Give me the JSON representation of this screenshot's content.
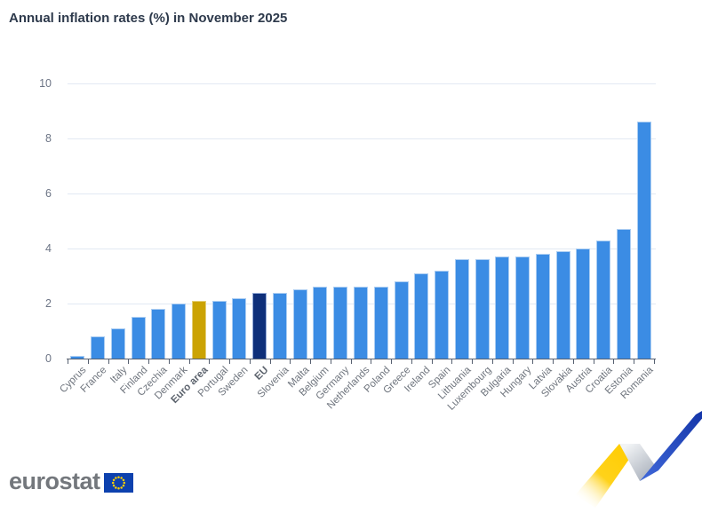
{
  "title": "Annual inflation rates (%) in November 2025",
  "chart_data": {
    "type": "bar",
    "title": "Annual inflation rates (%) in November 2025",
    "categories": [
      "Cyprus",
      "France",
      "Italy",
      "Finland",
      "Czechia",
      "Denmark",
      "Euro area",
      "Portugal",
      "Sweden",
      "EU",
      "Slovenia",
      "Malta",
      "Belgium",
      "Germany",
      "Netherlands",
      "Poland",
      "Greece",
      "Ireland",
      "Spain",
      "Lithuania",
      "Luxembourg",
      "Bulgaria",
      "Hungary",
      "Latvia",
      "Slovakia",
      "Austria",
      "Croatia",
      "Estonia",
      "Romania"
    ],
    "values": [
      0.1,
      0.8,
      1.1,
      1.5,
      1.8,
      2.0,
      2.1,
      2.1,
      2.2,
      2.4,
      2.4,
      2.5,
      2.6,
      2.6,
      2.6,
      2.6,
      2.8,
      3.1,
      3.2,
      3.6,
      3.6,
      3.7,
      3.7,
      3.8,
      3.9,
      4.0,
      4.3,
      4.7,
      8.6
    ],
    "emphasized_categories": [
      "Euro area",
      "EU"
    ],
    "xlabel": "",
    "ylabel": "",
    "ylim": [
      0,
      10
    ],
    "yticks": [
      0,
      2,
      4,
      6,
      8,
      10
    ],
    "grid": true,
    "legend": false,
    "bar_colors": {
      "default": "#3b8ce4",
      "Euro area": "#cba303",
      "EU": "#0e2f7a"
    },
    "bar_border_colors": {
      "default": "#abcdf2",
      "Euro area": "#e4cf78",
      "EU": "#93a9d6"
    }
  },
  "footer": {
    "logo_text": "eurostat",
    "flag_icon": "eu-flag-icon",
    "ribbon_icon": "trend-ribbon-icon"
  },
  "colors": {
    "axis": "#566070",
    "grid": "#e2e9f3",
    "y_tick_label": "#6d7586",
    "x_tick_label": "#6f757e",
    "title": "#2e3a4c",
    "logo_text": "#73777c",
    "flag_blue": "#0d41ae",
    "star_yellow": "#ffcf00",
    "ribbon_yellow": "#ffcc00",
    "ribbon_gray": "#aab1bc",
    "ribbon_blue": "#1233a6"
  }
}
